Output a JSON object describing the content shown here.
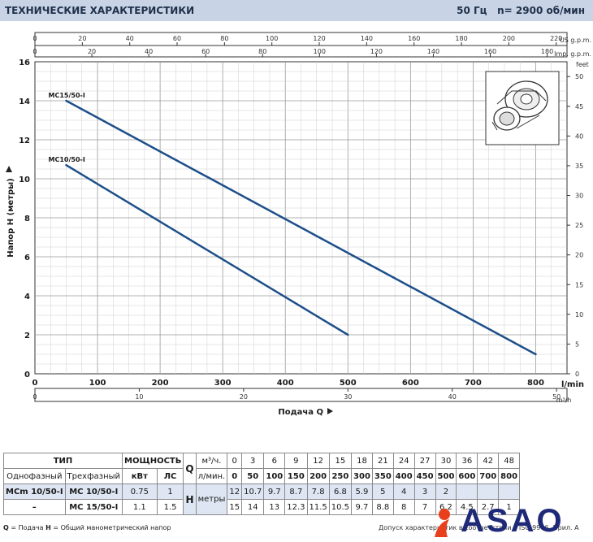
{
  "header": {
    "title": "ТЕХНИЧЕСКИЕ ХАРАКТЕРИСТИКИ",
    "frequency": "50 Гц",
    "speed": "n= 2900 об/мин"
  },
  "chart_data": {
    "type": "line",
    "xlabel": "Подача Q",
    "ylabel": "Напор H (метры)",
    "xlim": [
      0,
      850
    ],
    "ylim": [
      0,
      16
    ],
    "x_unit": "l/min",
    "x_ticks": [
      100,
      200,
      300,
      400,
      500,
      600,
      700,
      800
    ],
    "y_ticks": [
      0,
      2,
      4,
      6,
      8,
      10,
      12,
      14,
      16
    ],
    "us_gpm": {
      "unit": "US g.p.m.",
      "ticks": [
        0,
        20,
        40,
        60,
        80,
        100,
        120,
        140,
        160,
        180,
        200,
        220
      ]
    },
    "imp_gpm": {
      "unit": "Imp. g.p.m.",
      "ticks": [
        0,
        20,
        40,
        60,
        80,
        100,
        120,
        140,
        160,
        180
      ]
    },
    "m3h": {
      "unit": "m³/h",
      "ticks": [
        0,
        10,
        20,
        30,
        40,
        50
      ]
    },
    "feet": {
      "unit": "feet",
      "ticks": [
        0,
        5,
        10,
        15,
        20,
        25,
        30,
        35,
        40,
        45,
        50
      ]
    },
    "series": [
      {
        "name": "MC15/50-I",
        "x": [
          50,
          800
        ],
        "y": [
          14,
          1
        ]
      },
      {
        "name": "MC10/50-I",
        "x": [
          50,
          500
        ],
        "y": [
          10.7,
          2
        ]
      }
    ]
  },
  "table": {
    "type_header": "ТИП",
    "power_header": "МОЩНОСТЬ",
    "single_phase": "Однофазный",
    "three_phase": "Трехфазный",
    "kw": "кВт",
    "hp": "ЛС",
    "q_symbol": "Q",
    "h_symbol": "H",
    "m3h_label": "м³/ч.",
    "lmin_label": "л/мин.",
    "meters_label": "метры",
    "q_m3h": [
      "0",
      "3",
      "6",
      "9",
      "12",
      "15",
      "18",
      "21",
      "24",
      "27",
      "30",
      "36",
      "42",
      "48"
    ],
    "q_lmin": [
      "0",
      "50",
      "100",
      "150",
      "200",
      "250",
      "300",
      "350",
      "400",
      "450",
      "500",
      "600",
      "700",
      "800"
    ],
    "rows": [
      {
        "single": "MCm 10/50-I",
        "three": "MC 10/50-I",
        "kw": "0.75",
        "hp": "1",
        "h": [
          "12",
          "10.7",
          "9.7",
          "8.7",
          "7.8",
          "6.8",
          "5.9",
          "5",
          "4",
          "3",
          "2",
          "",
          "",
          ""
        ]
      },
      {
        "single": "–",
        "three": "MC 15/50-I",
        "kw": "1.1",
        "hp": "1.5",
        "h": [
          "15",
          "14",
          "13",
          "12.3",
          "11.5",
          "10.5",
          "9.7",
          "8.8",
          "8",
          "7",
          "6.2",
          "4.5",
          "2.7",
          "1"
        ]
      }
    ]
  },
  "footer": {
    "q_key": "Q",
    "q_def": " = Подача   ",
    "h_key": "H",
    "h_def": " = Общий манометрический напор",
    "tolerance": "Допуск характеристик в соответствии с ISO 9906, Прил. А"
  },
  "logo": {
    "text": "ASAO"
  }
}
